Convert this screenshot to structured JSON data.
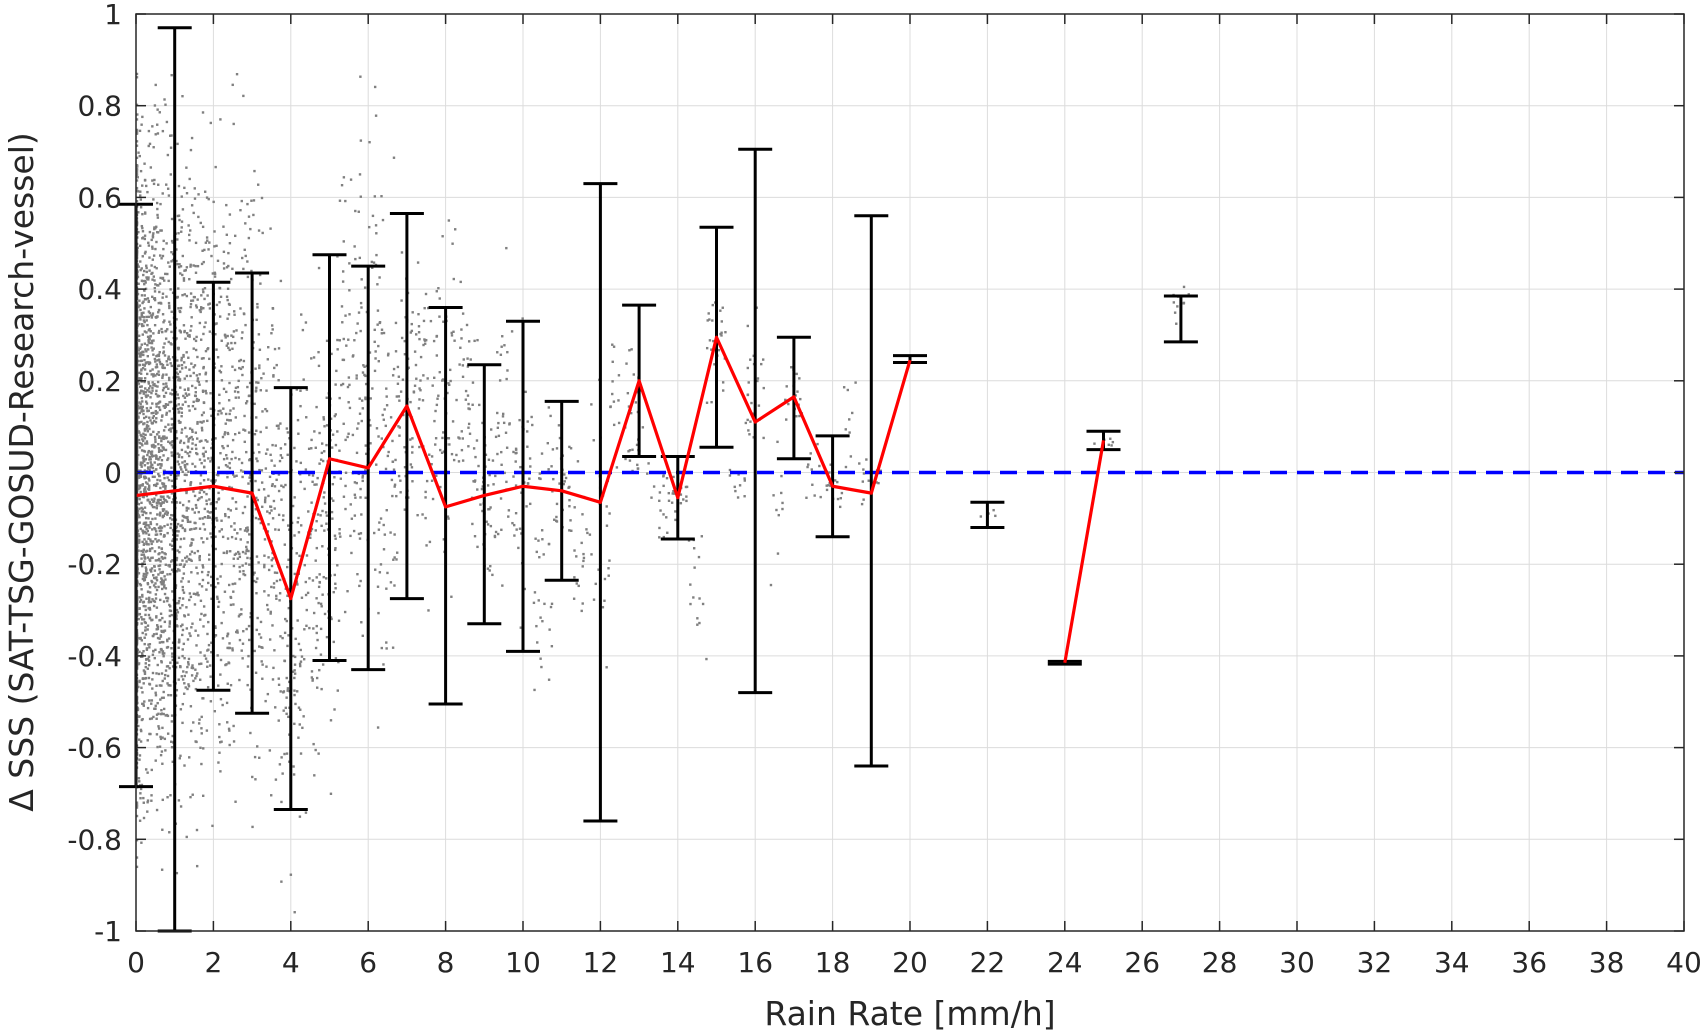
{
  "chart_data": {
    "type": "scatter",
    "xlabel": "Rain Rate [mm/h]",
    "ylabel": "Δ SSS (SAT-TSG-GOSUD-Research-vessel)",
    "xlim": [
      0,
      40
    ],
    "ylim": [
      -1,
      1
    ],
    "xticks": [
      "0",
      "2",
      "4",
      "6",
      "8",
      "10",
      "12",
      "14",
      "16",
      "18",
      "20",
      "22",
      "24",
      "26",
      "28",
      "30",
      "32",
      "34",
      "36",
      "38",
      "40"
    ],
    "yticks": [
      "1",
      "0.8",
      "0.6",
      "0.4",
      "0.2",
      "0",
      "-0.2",
      "-0.4",
      "-0.6",
      "-0.8",
      "-1"
    ],
    "grid": true,
    "reference_line": {
      "y": 0,
      "color": "#0000ff",
      "style": "dashed"
    },
    "colors": {
      "scatter": "#808080",
      "mean_line": "#ff0000",
      "error_bars": "#000000",
      "reference": "#0000ff"
    },
    "mean_line": [
      {
        "x": 0,
        "y": -0.05
      },
      {
        "x": 2,
        "y": -0.03
      },
      {
        "x": 3,
        "y": -0.045
      },
      {
        "x": 4,
        "y": -0.275
      },
      {
        "x": 5,
        "y": 0.03
      },
      {
        "x": 6,
        "y": 0.01
      },
      {
        "x": 7,
        "y": 0.145
      },
      {
        "x": 8,
        "y": -0.075
      },
      {
        "x": 9,
        "y": -0.05
      },
      {
        "x": 10,
        "y": -0.03
      },
      {
        "x": 11,
        "y": -0.04
      },
      {
        "x": 12,
        "y": -0.065
      },
      {
        "x": 13,
        "y": 0.2
      },
      {
        "x": 14,
        "y": -0.055
      },
      {
        "x": 15,
        "y": 0.295
      },
      {
        "x": 16,
        "y": 0.11
      },
      {
        "x": 17,
        "y": 0.165
      },
      {
        "x": 18,
        "y": -0.03
      },
      {
        "x": 19,
        "y": -0.045
      },
      {
        "x": 20,
        "y": 0.245
      },
      null,
      {
        "x": 24,
        "y": -0.415
      },
      {
        "x": 25,
        "y": 0.07
      }
    ],
    "error_bars": [
      {
        "x": 0,
        "low": -0.685,
        "high": 0.585
      },
      {
        "x": 1,
        "low": -1.0,
        "high": 0.97
      },
      {
        "x": 2,
        "low": -0.475,
        "high": 0.415
      },
      {
        "x": 3,
        "low": -0.525,
        "high": 0.435
      },
      {
        "x": 4,
        "low": -0.735,
        "high": 0.185
      },
      {
        "x": 5,
        "low": -0.41,
        "high": 0.475
      },
      {
        "x": 6,
        "low": -0.43,
        "high": 0.45
      },
      {
        "x": 7,
        "low": -0.275,
        "high": 0.565
      },
      {
        "x": 8,
        "low": -0.505,
        "high": 0.36
      },
      {
        "x": 9,
        "low": -0.33,
        "high": 0.235
      },
      {
        "x": 10,
        "low": -0.39,
        "high": 0.33
      },
      {
        "x": 11,
        "low": -0.235,
        "high": 0.155
      },
      {
        "x": 12,
        "low": -0.76,
        "high": 0.63
      },
      {
        "x": 13,
        "low": 0.035,
        "high": 0.365
      },
      {
        "x": 14,
        "low": -0.145,
        "high": 0.035
      },
      {
        "x": 15,
        "low": 0.055,
        "high": 0.535
      },
      {
        "x": 16,
        "low": -0.48,
        "high": 0.705
      },
      {
        "x": 17,
        "low": 0.03,
        "high": 0.295
      },
      {
        "x": 18,
        "low": -0.14,
        "high": 0.08
      },
      {
        "x": 19,
        "low": -0.64,
        "high": 0.56
      },
      {
        "x": 20,
        "low": 0.24,
        "high": 0.255
      },
      {
        "x": 22,
        "low": -0.12,
        "high": -0.065
      },
      {
        "x": 24,
        "low": -0.418,
        "high": -0.412
      },
      {
        "x": 25,
        "low": 0.05,
        "high": 0.09
      },
      {
        "x": 27,
        "low": 0.285,
        "high": 0.385
      }
    ],
    "scatter_columns": [
      {
        "x": 0.0,
        "low": -1.0,
        "high": 1.0,
        "n": 900
      },
      {
        "x": 0.5,
        "low": -1.0,
        "high": 1.0,
        "n": 700
      },
      {
        "x": 1.0,
        "low": -1.0,
        "high": 1.0,
        "n": 450
      },
      {
        "x": 1.5,
        "low": -1.0,
        "high": 1.0,
        "n": 320
      },
      {
        "x": 2.0,
        "low": -0.95,
        "high": 0.95,
        "n": 220
      },
      {
        "x": 2.5,
        "low": -1.0,
        "high": 1.0,
        "n": 180
      },
      {
        "x": 3.0,
        "low": -0.9,
        "high": 0.95,
        "n": 160
      },
      {
        "x": 3.5,
        "low": -0.85,
        "high": 0.7,
        "n": 120
      },
      {
        "x": 4.0,
        "low": -1.0,
        "high": 0.35,
        "n": 110
      },
      {
        "x": 4.5,
        "low": -0.95,
        "high": 0.6,
        "n": 90
      },
      {
        "x": 5.0,
        "low": -0.75,
        "high": 0.55,
        "n": 90
      },
      {
        "x": 5.5,
        "low": -0.55,
        "high": 0.85,
        "n": 70
      },
      {
        "x": 6.0,
        "low": -0.6,
        "high": 1.0,
        "n": 80
      },
      {
        "x": 6.5,
        "low": -0.8,
        "high": 0.85,
        "n": 70
      },
      {
        "x": 7.0,
        "low": -0.25,
        "high": 0.6,
        "n": 60
      },
      {
        "x": 7.5,
        "low": -0.4,
        "high": 0.75,
        "n": 50
      },
      {
        "x": 8.0,
        "low": -0.45,
        "high": 0.8,
        "n": 55
      },
      {
        "x": 8.5,
        "low": -0.25,
        "high": 0.55,
        "n": 40
      },
      {
        "x": 9.0,
        "low": -0.35,
        "high": 0.3,
        "n": 45
      },
      {
        "x": 9.5,
        "low": -0.4,
        "high": 0.6,
        "n": 40
      },
      {
        "x": 10.0,
        "low": -0.45,
        "high": 0.35,
        "n": 40
      },
      {
        "x": 10.5,
        "low": -0.6,
        "high": 0.3,
        "n": 35
      },
      {
        "x": 11.0,
        "low": -0.2,
        "high": 0.15,
        "n": 30
      },
      {
        "x": 11.5,
        "low": -0.4,
        "high": 0.1,
        "n": 20
      },
      {
        "x": 12.0,
        "low": -0.6,
        "high": 0.45,
        "n": 25
      },
      {
        "x": 12.5,
        "low": -0.1,
        "high": 0.45,
        "n": 20
      },
      {
        "x": 13.0,
        "low": -0.17,
        "high": 0.35,
        "n": 25
      },
      {
        "x": 13.5,
        "low": -0.2,
        "high": 0.1,
        "n": 15
      },
      {
        "x": 14.0,
        "low": -0.12,
        "high": 0.02,
        "n": 20
      },
      {
        "x": 14.5,
        "low": -0.47,
        "high": -0.05,
        "n": 15
      },
      {
        "x": 15.0,
        "low": 0.1,
        "high": 0.5,
        "n": 25
      },
      {
        "x": 15.5,
        "low": -0.1,
        "high": 0.05,
        "n": 10
      },
      {
        "x": 16.0,
        "low": -0.05,
        "high": 0.4,
        "n": 25
      },
      {
        "x": 16.5,
        "low": -0.35,
        "high": 0.2,
        "n": 10
      },
      {
        "x": 17.0,
        "low": 0.05,
        "high": 0.28,
        "n": 20
      },
      {
        "x": 17.5,
        "low": -0.1,
        "high": 0.15,
        "n": 10
      },
      {
        "x": 18.0,
        "low": -0.12,
        "high": 0.05,
        "n": 15
      },
      {
        "x": 18.5,
        "low": -0.1,
        "high": 0.25,
        "n": 10
      },
      {
        "x": 19.0,
        "low": -0.1,
        "high": 0.05,
        "n": 12
      },
      {
        "x": 22.0,
        "low": -0.11,
        "high": -0.07,
        "n": 6
      },
      {
        "x": 25.0,
        "low": 0.05,
        "high": 0.09,
        "n": 6
      },
      {
        "x": 27.0,
        "low": 0.3,
        "high": 0.46,
        "n": 10
      }
    ]
  }
}
